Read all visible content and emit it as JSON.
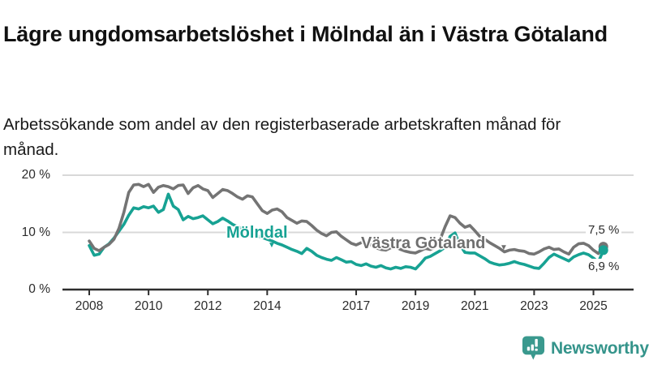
{
  "header": {
    "title": "Lägre ungdomsarbetslöshet i Mölndal än i Västra Götaland",
    "subtitle": "Arbetssökande som andel av den registerbaserade arbetskraften månad för månad."
  },
  "branding": {
    "logo_text": "Newsworthy",
    "logo_color": "#35948b",
    "logo_icon": "speech-bubble-bar-chart-exclamation"
  },
  "chart_data": {
    "type": "line",
    "title": "Lägre ungdomsarbetslöshet i Mölndal än i Västra Götaland",
    "subtitle": "Arbetssökande som andel av den registerbaserade arbetskraften månad för månad.",
    "unit": "%",
    "grid": "horizontal",
    "legend_position": "inline-labels-on-lines",
    "ylim": [
      0,
      21
    ],
    "x_range_years": [
      2008,
      2025.33
    ],
    "x_start_year": 2008,
    "points_per_year": 6,
    "y_ticks": [
      {
        "label": "0 %",
        "value": 0
      },
      {
        "label": "10 %",
        "value": 10
      },
      {
        "label": "20 %",
        "value": 20
      }
    ],
    "x_ticks": [
      {
        "label": "2008",
        "year": 2008
      },
      {
        "label": "2010",
        "year": 2010
      },
      {
        "label": "2012",
        "year": 2012
      },
      {
        "label": "2014",
        "year": 2014
      },
      {
        "label": "2017",
        "year": 2017
      },
      {
        "label": "2019",
        "year": 2019
      },
      {
        "label": "2021",
        "year": 2021
      },
      {
        "label": "2023",
        "year": 2023
      },
      {
        "label": "2025",
        "year": 2025
      }
    ],
    "series": [
      {
        "name": "Mölndal",
        "color": "#17a293",
        "end_value_label": "6,9 %",
        "end_value": 6.9,
        "values": [
          7.7,
          6,
          6.2,
          7.4,
          8,
          9,
          10.2,
          11.4,
          13,
          14.3,
          14.1,
          14.5,
          14.3,
          14.6,
          13.5,
          14,
          16.7,
          14.6,
          14,
          12.2,
          12.8,
          12.4,
          12.6,
          12.9,
          12.2,
          11.5,
          11.9,
          12.5,
          12,
          11.4,
          11,
          10.6,
          10.2,
          9.8,
          9.4,
          9.1,
          8.8,
          8.5,
          8.1,
          7.8,
          7.4,
          7,
          6.7,
          6.3,
          7.2,
          6.7,
          6,
          5.6,
          5.3,
          5.1,
          5.6,
          5.2,
          4.8,
          4.9,
          4.4,
          4.2,
          4.5,
          4.1,
          3.9,
          4.2,
          3.8,
          3.6,
          3.9,
          3.7,
          4,
          3.9,
          3.6,
          4.5,
          5.5,
          5.8,
          6.3,
          6.8,
          7.4,
          9.3,
          9.9,
          7.8,
          6.5,
          6.4,
          6.4,
          5.9,
          5.4,
          4.8,
          4.5,
          4.3,
          4.4,
          4.6,
          4.9,
          4.6,
          4.4,
          4.1,
          3.8,
          3.7,
          4.6,
          5.6,
          6.2,
          5.8,
          5.4,
          5,
          5.7,
          6.1,
          6.4,
          6.1,
          5.5,
          4.8,
          6.9
        ]
      },
      {
        "name": "Västra Götaland",
        "color": "#747474",
        "end_value_label": "7,5 %",
        "end_value": 7.5,
        "values": [
          8.5,
          7.2,
          6.8,
          7.4,
          7.9,
          8.8,
          10.7,
          13.5,
          17,
          18.3,
          18.4,
          18,
          18.4,
          17,
          17.9,
          18.2,
          18,
          17.6,
          18.2,
          18.3,
          16.8,
          17.8,
          18.2,
          17.6,
          17.3,
          16.1,
          16.8,
          17.5,
          17.3,
          16.8,
          16.2,
          15.8,
          16.4,
          16.2,
          15,
          13.8,
          13.3,
          13.9,
          14.1,
          13.6,
          12.6,
          12.1,
          11.6,
          12,
          11.9,
          11.2,
          10.4,
          9.8,
          9.4,
          10,
          10.1,
          9.3,
          8.7,
          8.1,
          7.8,
          8.2,
          8.3,
          7.8,
          7.3,
          7,
          6.9,
          7.3,
          7.4,
          7,
          6.7,
          6.5,
          6.4,
          6.8,
          7.2,
          7,
          7.4,
          8.8,
          11,
          12.9,
          12.6,
          11.6,
          10.9,
          11.2,
          10.3,
          9.3,
          8.8,
          8.2,
          7.7,
          7.2,
          6.6,
          6.9,
          7,
          6.8,
          6.7,
          6.3,
          6.2,
          6.6,
          7.1,
          7.4,
          7,
          7.1,
          6.6,
          6.2,
          7.4,
          8,
          8.1,
          7.7,
          6.9,
          6.3,
          7.5
        ]
      }
    ]
  }
}
